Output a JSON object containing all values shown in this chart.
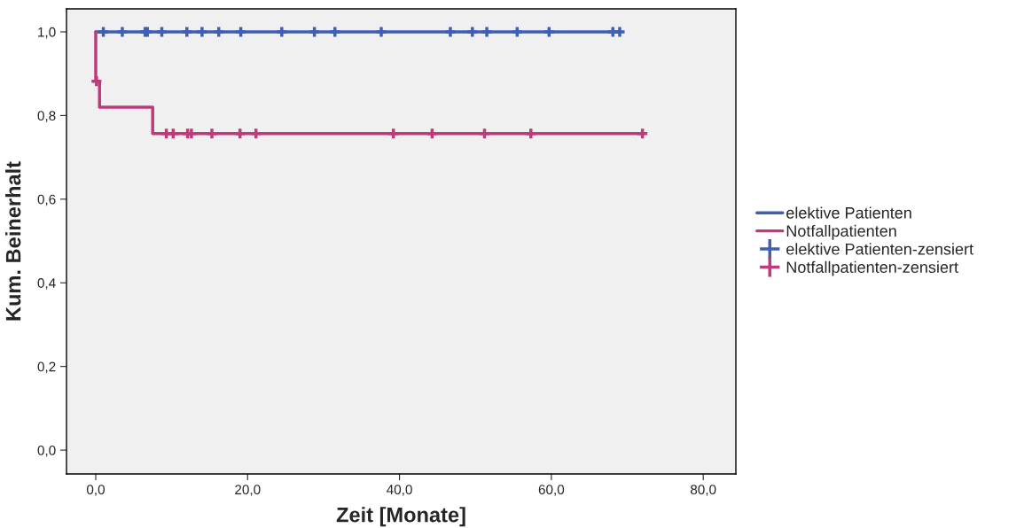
{
  "chart_data": {
    "type": "step",
    "xlabel": "Zeit [Monate]",
    "ylabel": "Kum. Beinerhalt",
    "xlim": [
      -3.85,
      84.3
    ],
    "ylim": [
      -0.057,
      1.055
    ],
    "xticks": [
      {
        "value": 0,
        "label": "0,0"
      },
      {
        "value": 20,
        "label": "20,0"
      },
      {
        "value": 40,
        "label": "40,0"
      },
      {
        "value": 60,
        "label": "60,0"
      },
      {
        "value": 80,
        "label": "80,0"
      }
    ],
    "yticks": [
      {
        "value": 0,
        "label": "0,0"
      },
      {
        "value": 0.2,
        "label": "0,2"
      },
      {
        "value": 0.4,
        "label": "0,4"
      },
      {
        "value": 0.6,
        "label": "0,6"
      },
      {
        "value": 0.8,
        "label": "0,8"
      },
      {
        "value": 1.0,
        "label": "1,0"
      }
    ],
    "grid": false,
    "legend": "right",
    "series": [
      {
        "name": "elektive Patienten",
        "color": "#3f5fb5",
        "x": [
          0,
          69.0
        ],
        "values": [
          1.0,
          1.0
        ]
      },
      {
        "name": "Notfallpatienten",
        "color": "#c0397a",
        "x": [
          0,
          0,
          0.5,
          7.5,
          72.0
        ],
        "values": [
          1.0,
          0.882,
          0.82,
          0.757,
          0.757
        ]
      },
      {
        "name": "elektive Patienten-zensiert",
        "type": "scatter",
        "marker": "cross",
        "color": "#3f5fb5",
        "x": [
          1.0,
          3.5,
          6.5,
          6.8,
          8.7,
          12.0,
          14.0,
          16.2,
          19.1,
          24.5,
          28.8,
          31.5,
          37.6,
          46.7,
          49.6,
          51.5,
          55.5,
          59.7,
          68.1,
          69.0
        ],
        "values": [
          1,
          1,
          1,
          1,
          1,
          1,
          1,
          1,
          1,
          1,
          1,
          1,
          1,
          1,
          1,
          1,
          1,
          1,
          1,
          1
        ]
      },
      {
        "name": "Notfallpatienten-zensiert",
        "type": "scatter",
        "marker": "cross",
        "color": "#c0397a",
        "x": [
          0.1,
          9.3,
          10.2,
          12.1,
          12.6,
          15.3,
          19.0,
          21.1,
          39.2,
          44.3,
          51.2,
          57.3,
          72.0
        ],
        "values": [
          0.882,
          0.757,
          0.757,
          0.757,
          0.757,
          0.757,
          0.757,
          0.757,
          0.757,
          0.757,
          0.757,
          0.757,
          0.757
        ]
      }
    ]
  }
}
